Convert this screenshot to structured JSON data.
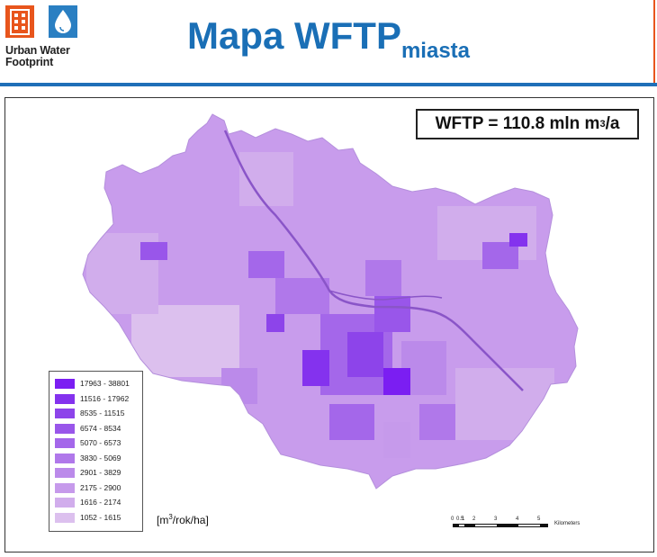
{
  "logo": {
    "line1": "Urban Water",
    "line2": "Footprint",
    "box_left_caption": "Urban",
    "box_right_caption": "Water"
  },
  "title": {
    "main": "Mapa WFTP",
    "sub": "miasta"
  },
  "wftp_total": {
    "prefix": "WFTP = 110.8 mln m",
    "exponent": "3",
    "suffix": "/a"
  },
  "unit": {
    "prefix": "[m",
    "exponent": "3",
    "suffix": "/rok/ha]"
  },
  "legend": [
    {
      "label": "17963 - 38801",
      "color": "#7b1ef2"
    },
    {
      "label": "11516 - 17962",
      "color": "#8432ee"
    },
    {
      "label": "8535 - 11515",
      "color": "#8d44ea"
    },
    {
      "label": "6574 - 8534",
      "color": "#9956ea"
    },
    {
      "label": "5070 - 6573",
      "color": "#a467ea"
    },
    {
      "label": "3830 - 5069",
      "color": "#b078ea"
    },
    {
      "label": "2901 - 3829",
      "color": "#bb8aea"
    },
    {
      "label": "2175 - 2900",
      "color": "#c69aeb"
    },
    {
      "label": "1616 - 2174",
      "color": "#d1adec"
    },
    {
      "label": "1052 - 1615",
      "color": "#dcc0ee"
    }
  ],
  "scalebar": {
    "ticks": [
      "0",
      "0.5",
      "1",
      "2",
      "3",
      "4",
      "5"
    ],
    "units": "Kilometers"
  },
  "colors": {
    "title": "#1a6fb6",
    "accent_orange": "#e8551c",
    "accent_blue": "#1f6fb8",
    "river": "#8a55c8"
  }
}
